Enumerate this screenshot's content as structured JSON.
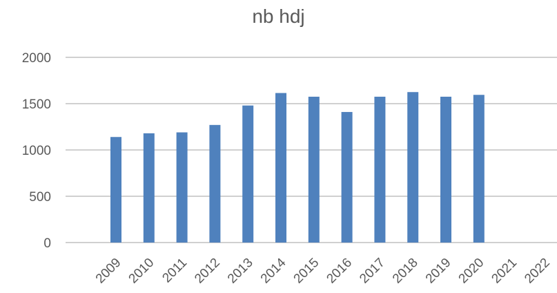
{
  "chart_data": {
    "type": "bar",
    "title": "nb hdj",
    "xlabel": "",
    "ylabel": "",
    "categories": [
      "2009",
      "2010",
      "2011",
      "2012",
      "2013",
      "2014",
      "2015",
      "2016",
      "2017",
      "2018",
      "2019",
      "2020",
      "2021",
      "2022"
    ],
    "values": [
      1140,
      1180,
      1190,
      1270,
      1480,
      1615,
      1575,
      1410,
      1575,
      1625,
      1575,
      1595,
      null,
      null
    ],
    "ylim": [
      0,
      2000
    ],
    "yticks": [
      "0",
      "500",
      "1000",
      "1500",
      "2000"
    ],
    "grid": true,
    "legend": "none",
    "colors": {
      "bar": "#4f81bd",
      "grid": "#d0d0d0",
      "text": "#595959"
    }
  }
}
